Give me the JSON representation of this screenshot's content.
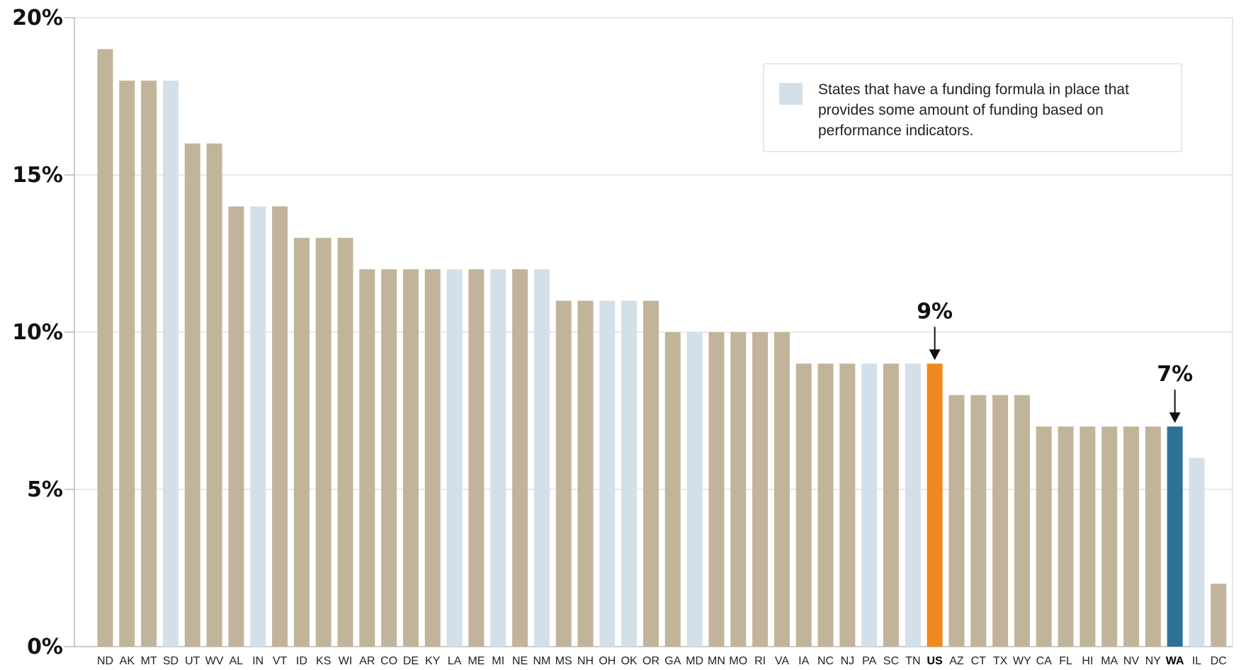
{
  "chart_data": {
    "type": "bar",
    "categories": [
      "ND",
      "AK",
      "MT",
      "SD",
      "UT",
      "WV",
      "AL",
      "IN",
      "VT",
      "ID",
      "KS",
      "WI",
      "AR",
      "CO",
      "DE",
      "KY",
      "LA",
      "ME",
      "MI",
      "NE",
      "NM",
      "MS",
      "NH",
      "OH",
      "OK",
      "OR",
      "GA",
      "MD",
      "MN",
      "MO",
      "RI",
      "VA",
      "IA",
      "NC",
      "NJ",
      "PA",
      "SC",
      "TN",
      "US",
      "AZ",
      "CT",
      "TX",
      "WY",
      "CA",
      "FL",
      "HI",
      "MA",
      "NV",
      "NY",
      "WA",
      "IL",
      "DC"
    ],
    "values": [
      19,
      18,
      18,
      18,
      16,
      16,
      14,
      14,
      14,
      13,
      13,
      13,
      12,
      12,
      12,
      12,
      12,
      12,
      12,
      12,
      12,
      11,
      11,
      11,
      11,
      11,
      10,
      10,
      10,
      10,
      10,
      10,
      9,
      9,
      9,
      9,
      9,
      9,
      9,
      8,
      8,
      8,
      8,
      7,
      7,
      7,
      7,
      7,
      7,
      7,
      6,
      2
    ],
    "performance_funding": [
      "SD",
      "IN",
      "LA",
      "MI",
      "NM",
      "OH",
      "OK",
      "MD",
      "PA",
      "TN",
      "IL"
    ],
    "highlight": {
      "US": "#f0891f",
      "WA": "#2e7196"
    },
    "colors": {
      "default": "#c2b49a",
      "performance": "#d4e0e9",
      "grid": "#d0d0d0",
      "axis": "#bbbbbb"
    },
    "ylim": [
      0,
      20
    ],
    "yticks": [
      0,
      5,
      10,
      15,
      20
    ],
    "ytick_labels": [
      "0%",
      "5%",
      "10%",
      "15%",
      "20%"
    ],
    "grid": true,
    "legend_position": "top-right",
    "legend": {
      "label": "States that have a funding formula in place that provides some amount of funding based on performance indicators."
    },
    "annotations": [
      {
        "category": "US",
        "label": "9%"
      },
      {
        "category": "WA",
        "label": "7%"
      }
    ],
    "title": "",
    "xlabel": "",
    "ylabel": ""
  }
}
